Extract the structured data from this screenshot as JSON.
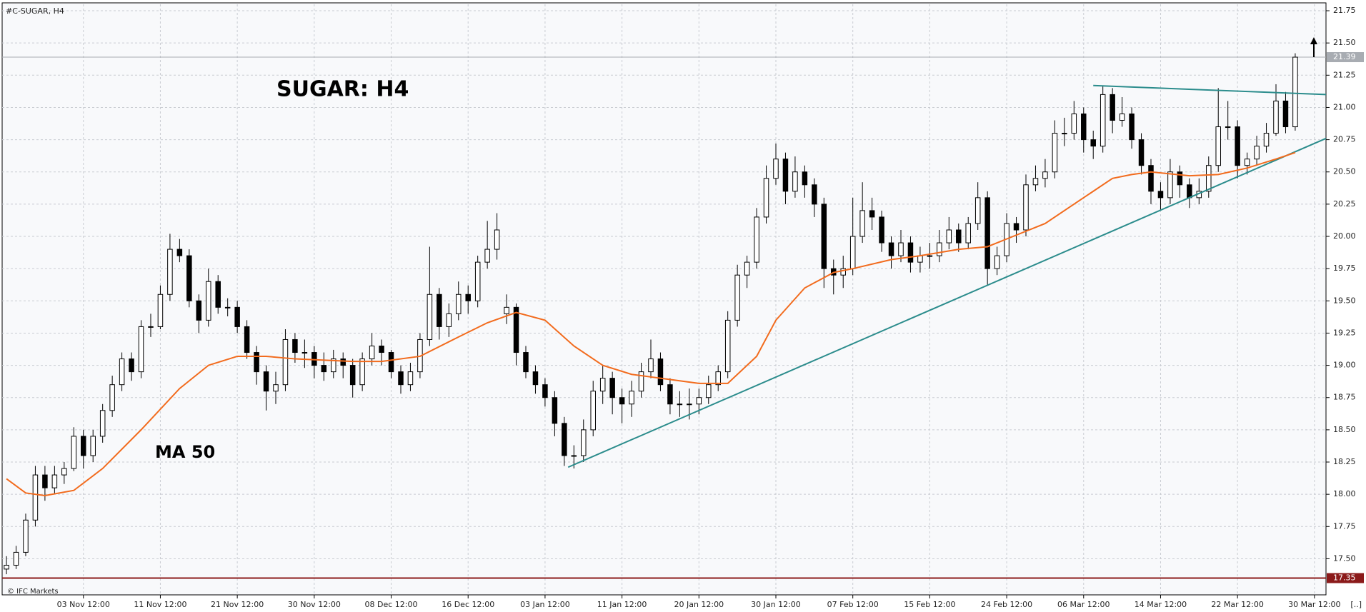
{
  "chart_data": {
    "type": "candlestick",
    "symbol": "#C-SUGAR, H4",
    "title": "SUGAR: H4",
    "footer": "© IFC Markets",
    "corner": "[..]",
    "up_color": "#ffffff",
    "down_color": "#000000",
    "grid": true,
    "xlim": [
      -0.45,
      137.2
    ],
    "ylim": [
      17.22,
      21.8
    ],
    "yticks": [
      {
        "value": 17.5,
        "label": "17.50"
      },
      17.75,
      {
        "value": 18,
        "label": "18.00"
      },
      18.25,
      {
        "value": 18.5,
        "label": "18.50"
      },
      18.75,
      {
        "value": 19,
        "label": "19.00"
      },
      19.25,
      {
        "value": 19.5,
        "label": "19.50"
      },
      19.75,
      {
        "value": 20,
        "label": "20.00"
      },
      20.25,
      {
        "value": 20.5,
        "label": "20.50"
      },
      20.75,
      {
        "value": 21,
        "label": "21.00"
      },
      21.25,
      {
        "value": 21.5,
        "label": "21.50"
      },
      21.75
    ],
    "xticks": [
      {
        "value": 8,
        "label": "03 Nov 12:00"
      },
      {
        "value": 16,
        "label": "11 Nov 12:00"
      },
      {
        "value": 24,
        "label": "21 Nov 12:00"
      },
      {
        "value": 32,
        "label": "30 Nov 12:00"
      },
      {
        "value": 40,
        "label": "08 Dec 12:00"
      },
      {
        "value": 48,
        "label": "16 Dec 12:00"
      },
      {
        "value": 56,
        "label": "03 Jan 12:00"
      },
      {
        "value": 64,
        "label": "11 Jan 12:00"
      },
      {
        "value": 72,
        "label": "20 Jan 12:00"
      },
      {
        "value": 80,
        "label": "30 Jan 12:00"
      },
      {
        "value": 88,
        "label": "07 Feb 12:00"
      },
      {
        "value": 96,
        "label": "15 Feb 12:00"
      },
      {
        "value": 104,
        "label": "24 Feb 12:00"
      },
      {
        "value": 112,
        "label": "06 Mar 12:00"
      },
      {
        "value": 120,
        "label": "14 Mar 12:00"
      },
      {
        "value": 128,
        "label": "22 Mar 12:00"
      },
      {
        "value": 136,
        "label": "30 Mar 12:00"
      }
    ],
    "candles": [
      [
        17.42,
        17.52,
        17.38,
        17.45
      ],
      [
        17.45,
        17.6,
        17.42,
        17.55
      ],
      [
        17.55,
        17.85,
        17.52,
        17.8
      ],
      [
        17.8,
        18.22,
        17.75,
        18.15
      ],
      [
        18.15,
        18.22,
        17.95,
        18.05
      ],
      [
        18.05,
        18.22,
        18.0,
        18.15
      ],
      [
        18.15,
        18.25,
        18.08,
        18.2
      ],
      [
        18.2,
        18.52,
        18.18,
        18.45
      ],
      [
        18.45,
        18.5,
        18.2,
        18.3
      ],
      [
        18.3,
        18.5,
        18.25,
        18.45
      ],
      [
        18.45,
        18.7,
        18.4,
        18.65
      ],
      [
        18.65,
        18.92,
        18.6,
        18.85
      ],
      [
        18.85,
        19.1,
        18.8,
        19.05
      ],
      [
        19.05,
        19.1,
        18.88,
        18.95
      ],
      [
        18.95,
        19.35,
        18.9,
        19.3
      ],
      [
        19.3,
        19.4,
        19.22,
        19.3
      ],
      [
        19.3,
        19.62,
        19.28,
        19.55
      ],
      [
        19.55,
        20.02,
        19.5,
        19.9
      ],
      [
        19.9,
        19.98,
        19.8,
        19.85
      ],
      [
        19.85,
        19.9,
        19.45,
        19.5
      ],
      [
        19.5,
        19.55,
        19.25,
        19.35
      ],
      [
        19.35,
        19.75,
        19.3,
        19.65
      ],
      [
        19.65,
        19.7,
        19.4,
        19.45
      ],
      [
        19.45,
        19.52,
        19.38,
        19.45
      ],
      [
        19.45,
        19.5,
        19.25,
        19.3
      ],
      [
        19.3,
        19.35,
        19.05,
        19.1
      ],
      [
        19.1,
        19.15,
        18.85,
        18.95
      ],
      [
        18.95,
        19.0,
        18.65,
        18.8
      ],
      [
        18.8,
        18.95,
        18.7,
        18.85
      ],
      [
        18.85,
        19.28,
        18.8,
        19.2
      ],
      [
        19.2,
        19.25,
        19.02,
        19.1
      ],
      [
        19.1,
        19.2,
        18.98,
        19.1
      ],
      [
        19.1,
        19.15,
        18.9,
        19.0
      ],
      [
        19.0,
        19.1,
        18.88,
        18.95
      ],
      [
        18.95,
        19.12,
        18.9,
        19.05
      ],
      [
        19.05,
        19.1,
        18.9,
        19.0
      ],
      [
        19.0,
        19.05,
        18.75,
        18.85
      ],
      [
        18.85,
        19.1,
        18.8,
        19.05
      ],
      [
        19.05,
        19.25,
        19.0,
        19.15
      ],
      [
        19.15,
        19.2,
        19.0,
        19.1
      ],
      [
        19.1,
        19.12,
        18.9,
        18.95
      ],
      [
        18.95,
        19.0,
        18.78,
        18.85
      ],
      [
        18.85,
        19.02,
        18.8,
        18.95
      ],
      [
        18.95,
        19.25,
        18.9,
        19.2
      ],
      [
        19.2,
        19.92,
        19.15,
        19.55
      ],
      [
        19.55,
        19.6,
        19.2,
        19.3
      ],
      [
        19.3,
        19.48,
        19.22,
        19.4
      ],
      [
        19.4,
        19.65,
        19.35,
        19.55
      ],
      [
        19.55,
        19.62,
        19.4,
        19.5
      ],
      [
        19.5,
        19.85,
        19.45,
        19.8
      ],
      [
        19.8,
        20.12,
        19.75,
        19.9
      ],
      [
        19.9,
        20.18,
        19.82,
        20.05
      ],
      [
        19.4,
        19.55,
        19.32,
        19.45
      ],
      [
        19.45,
        19.48,
        19.0,
        19.1
      ],
      [
        19.1,
        19.15,
        18.9,
        18.95
      ],
      [
        18.95,
        19.0,
        18.78,
        18.85
      ],
      [
        18.85,
        18.9,
        18.68,
        18.75
      ],
      [
        18.75,
        18.8,
        18.45,
        18.55
      ],
      [
        18.55,
        18.6,
        18.22,
        18.3
      ],
      [
        18.3,
        18.38,
        18.2,
        18.3
      ],
      [
        18.3,
        18.58,
        18.25,
        18.5
      ],
      [
        18.5,
        18.88,
        18.45,
        18.8
      ],
      [
        18.8,
        19.0,
        18.7,
        18.9
      ],
      [
        18.9,
        18.95,
        18.62,
        18.75
      ],
      [
        18.75,
        18.82,
        18.55,
        18.7
      ],
      [
        18.7,
        18.88,
        18.6,
        18.8
      ],
      [
        18.8,
        19.02,
        18.75,
        18.95
      ],
      [
        18.95,
        19.2,
        18.9,
        19.05
      ],
      [
        19.05,
        19.1,
        18.8,
        18.85
      ],
      [
        18.85,
        18.9,
        18.62,
        18.7
      ],
      [
        18.7,
        18.8,
        18.6,
        18.7
      ],
      [
        18.7,
        18.82,
        18.58,
        18.7
      ],
      [
        18.7,
        18.82,
        18.62,
        18.75
      ],
      [
        18.75,
        18.92,
        18.7,
        18.85
      ],
      [
        18.85,
        19.0,
        18.8,
        18.95
      ],
      [
        18.95,
        19.42,
        18.9,
        19.35
      ],
      [
        19.35,
        19.78,
        19.3,
        19.7
      ],
      [
        19.7,
        19.85,
        19.6,
        19.8
      ],
      [
        19.8,
        20.22,
        19.75,
        20.15
      ],
      [
        20.15,
        20.55,
        20.1,
        20.45
      ],
      [
        20.45,
        20.72,
        20.4,
        20.6
      ],
      [
        20.6,
        20.65,
        20.25,
        20.35
      ],
      [
        20.35,
        20.62,
        20.3,
        20.5
      ],
      [
        20.5,
        20.55,
        20.3,
        20.4
      ],
      [
        20.4,
        20.45,
        20.15,
        20.25
      ],
      [
        20.25,
        20.3,
        19.6,
        19.75
      ],
      [
        19.75,
        19.82,
        19.55,
        19.7
      ],
      [
        19.7,
        19.85,
        19.6,
        19.75
      ],
      [
        19.75,
        20.3,
        19.7,
        20.0
      ],
      [
        20.0,
        20.42,
        19.95,
        20.2
      ],
      [
        20.2,
        20.3,
        20.05,
        20.15
      ],
      [
        20.15,
        20.2,
        19.88,
        19.95
      ],
      [
        19.95,
        20.0,
        19.75,
        19.85
      ],
      [
        19.85,
        20.05,
        19.8,
        19.95
      ],
      [
        19.95,
        20.0,
        19.72,
        19.8
      ],
      [
        19.8,
        19.92,
        19.72,
        19.85
      ],
      [
        19.85,
        19.95,
        19.75,
        19.85
      ],
      [
        19.85,
        20.05,
        19.8,
        19.95
      ],
      [
        19.95,
        20.15,
        19.9,
        20.05
      ],
      [
        20.05,
        20.1,
        19.88,
        19.95
      ],
      [
        19.95,
        20.15,
        19.9,
        20.1
      ],
      [
        20.1,
        20.42,
        20.05,
        20.3
      ],
      [
        20.3,
        20.35,
        19.62,
        19.75
      ],
      [
        19.75,
        19.92,
        19.7,
        19.85
      ],
      [
        19.85,
        20.18,
        19.8,
        20.1
      ],
      [
        20.1,
        20.15,
        19.95,
        20.05
      ],
      [
        20.05,
        20.48,
        20.0,
        20.4
      ],
      [
        20.4,
        20.55,
        20.35,
        20.45
      ],
      [
        20.45,
        20.6,
        20.38,
        20.5
      ],
      [
        20.5,
        20.9,
        20.45,
        20.8
      ],
      [
        20.8,
        20.92,
        20.7,
        20.8
      ],
      [
        20.8,
        21.05,
        20.75,
        20.95
      ],
      [
        20.95,
        21.0,
        20.65,
        20.75
      ],
      [
        20.75,
        20.82,
        20.6,
        20.7
      ],
      [
        20.7,
        21.17,
        20.65,
        21.1
      ],
      [
        21.1,
        21.15,
        20.8,
        20.9
      ],
      [
        20.9,
        21.08,
        20.85,
        20.95
      ],
      [
        20.95,
        21.0,
        20.68,
        20.75
      ],
      [
        20.75,
        20.8,
        20.48,
        20.55
      ],
      [
        20.55,
        20.6,
        20.25,
        20.35
      ],
      [
        20.35,
        20.42,
        20.2,
        20.3
      ],
      [
        20.3,
        20.6,
        20.25,
        20.5
      ],
      [
        20.5,
        20.55,
        20.3,
        20.4
      ],
      [
        20.4,
        20.45,
        20.22,
        20.3
      ],
      [
        20.3,
        20.45,
        20.25,
        20.35
      ],
      [
        20.35,
        20.62,
        20.3,
        20.55
      ],
      [
        20.55,
        21.15,
        20.5,
        20.85
      ],
      [
        20.85,
        21.05,
        20.75,
        20.85
      ],
      [
        20.85,
        20.9,
        20.45,
        20.55
      ],
      [
        20.55,
        20.65,
        20.48,
        20.6
      ],
      [
        20.6,
        20.78,
        20.55,
        20.7
      ],
      [
        20.7,
        20.88,
        20.65,
        20.8
      ],
      [
        20.8,
        21.18,
        20.78,
        21.05
      ],
      [
        21.05,
        21.12,
        20.8,
        20.85
      ],
      [
        20.85,
        21.42,
        20.82,
        21.39
      ]
    ],
    "ma": {
      "name": "MA 50",
      "color": "#f26b1d",
      "x": [
        0,
        2,
        4,
        7,
        10,
        14,
        18,
        21,
        24,
        27,
        30,
        36,
        39,
        43,
        47,
        50,
        53,
        56,
        59,
        62,
        65,
        68,
        72,
        75,
        78,
        80,
        83,
        86,
        88,
        92,
        95,
        99,
        102,
        104,
        108,
        112,
        115,
        117,
        119,
        123,
        126,
        129,
        132,
        134
      ],
      "values": [
        18.12,
        18.01,
        17.99,
        18.03,
        18.2,
        18.5,
        18.82,
        19.0,
        19.07,
        19.07,
        19.05,
        19.03,
        19.03,
        19.07,
        19.22,
        19.33,
        19.41,
        19.35,
        19.15,
        19.0,
        18.93,
        18.9,
        18.86,
        18.86,
        19.07,
        19.35,
        19.6,
        19.72,
        19.75,
        19.82,
        19.85,
        19.9,
        19.92,
        19.98,
        20.1,
        20.3,
        20.45,
        20.48,
        20.5,
        20.47,
        20.48,
        20.53,
        20.6,
        20.65
      ]
    },
    "trendlines": [
      {
        "color": "#2b8c8c",
        "x": [
          58.4,
          137.2
        ],
        "y": [
          18.21,
          20.76
        ]
      },
      {
        "color": "#2b8c8c",
        "x": [
          113,
          137.2
        ],
        "y": [
          21.17,
          21.1
        ]
      }
    ],
    "levels": [
      {
        "value": 21.39,
        "color": "#a8acb2"
      },
      {
        "value": 17.35,
        "color": "#8b1a1a"
      }
    ]
  }
}
